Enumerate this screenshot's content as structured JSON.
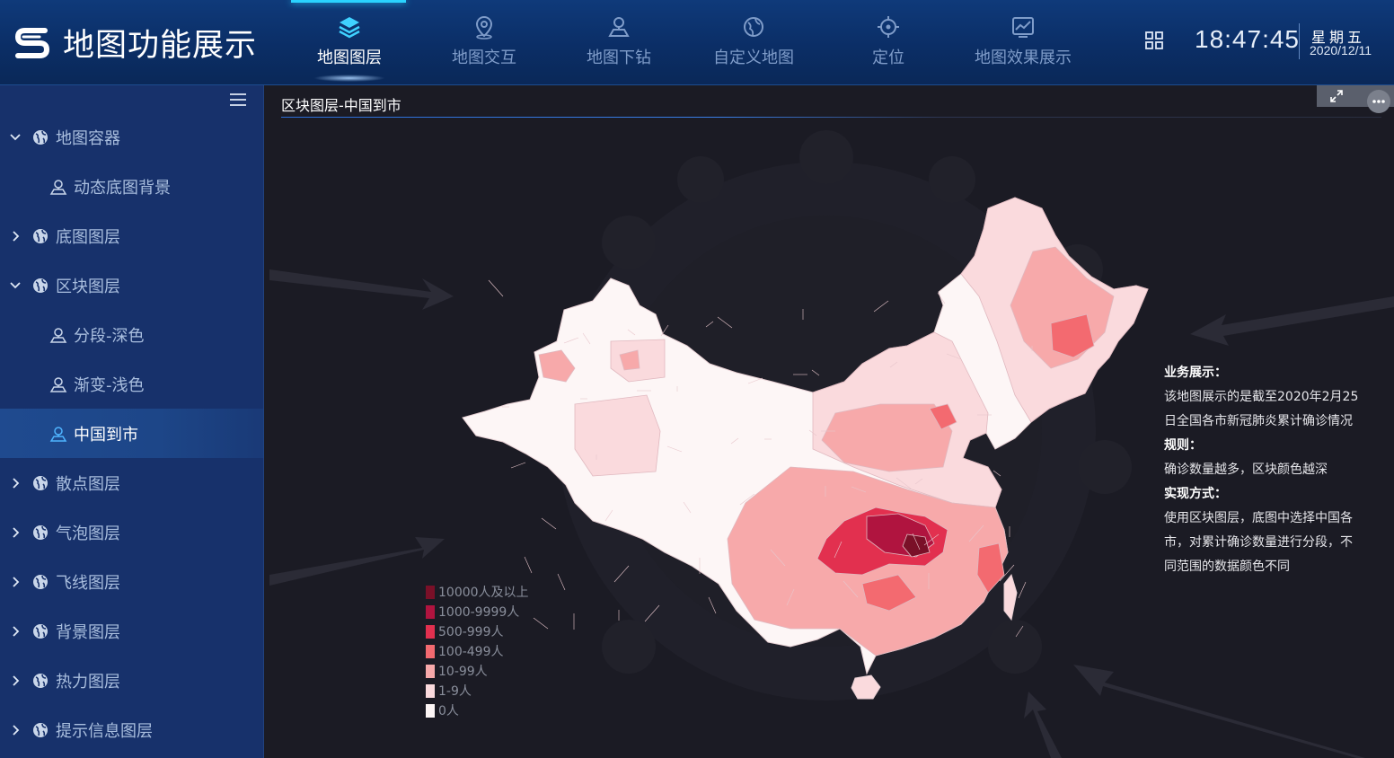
{
  "app": {
    "title": "地图功能展示"
  },
  "nav": [
    {
      "label": "地图图层",
      "icon": "layers-icon",
      "active": true
    },
    {
      "label": "地图交互",
      "icon": "map-pin-icon",
      "active": false
    },
    {
      "label": "地图下钻",
      "icon": "map-drill-icon",
      "active": false
    },
    {
      "label": "自定义地图",
      "icon": "custom-map-icon",
      "active": false
    },
    {
      "label": "定位",
      "icon": "locate-icon",
      "active": false
    },
    {
      "label": "地图效果展示",
      "icon": "chart-effect-icon",
      "active": false
    }
  ],
  "header": {
    "time": "18:47:45",
    "weekday": "星期五",
    "date": "2020/12/11"
  },
  "sidebar": {
    "items": [
      {
        "label": "地图容器",
        "level": 1,
        "expanded": true
      },
      {
        "label": "动态底图背景",
        "level": 2
      },
      {
        "label": "底图图层",
        "level": 1,
        "expanded": false
      },
      {
        "label": "区块图层",
        "level": 1,
        "expanded": true
      },
      {
        "label": "分段-深色",
        "level": 2
      },
      {
        "label": "渐变-浅色",
        "level": 2
      },
      {
        "label": "中国到市",
        "level": 2,
        "selected": true
      },
      {
        "label": "散点图层",
        "level": 1,
        "expanded": false
      },
      {
        "label": "气泡图层",
        "level": 1,
        "expanded": false
      },
      {
        "label": "飞线图层",
        "level": 1,
        "expanded": false
      },
      {
        "label": "背景图层",
        "level": 1,
        "expanded": false
      },
      {
        "label": "热力图层",
        "level": 1,
        "expanded": false
      },
      {
        "label": "提示信息图层",
        "level": 1,
        "expanded": false
      }
    ]
  },
  "panel": {
    "title": "区块图层-中国到市"
  },
  "legend": [
    {
      "label": "10000人及以上",
      "color": "#7a1028"
    },
    {
      "label": "1000-9999人",
      "color": "#b0143f"
    },
    {
      "label": "500-999人",
      "color": "#e2304f"
    },
    {
      "label": "100-499人",
      "color": "#f36a70"
    },
    {
      "label": "10-99人",
      "color": "#f7a9aa"
    },
    {
      "label": "1-9人",
      "color": "#fadadd"
    },
    {
      "label": "0人",
      "color": "#fdf6f6"
    }
  ],
  "info": {
    "business_head": "业务展示：",
    "business_text": "该地图展示的是截至2020年2月25日全国各市新冠肺炎累计确诊情况",
    "rule_head": "规则：",
    "rule_text": "确诊数量越多，区块颜色越深",
    "impl_head": "实现方式：",
    "impl_text": "使用区块图层，底图中选择中国各市，对累计确诊数量进行分段，不同范围的数据颜色不同"
  },
  "colors": {
    "header_bg": "#0b2e66",
    "sidebar_bg": "#17316b",
    "main_bg": "#1b1b24",
    "accent": "#2ad3ff"
  }
}
